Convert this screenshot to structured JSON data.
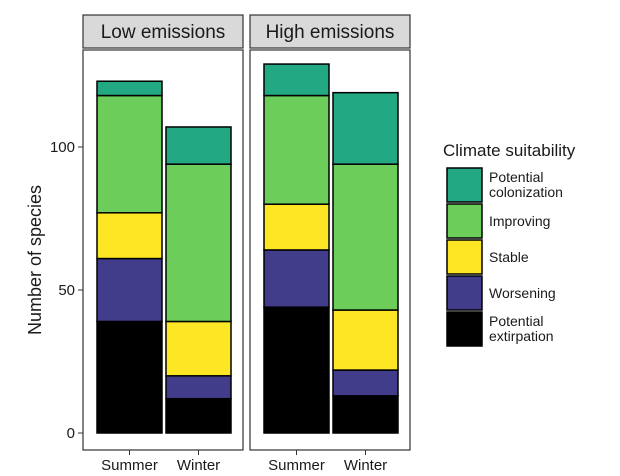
{
  "chart_data": {
    "type": "bar",
    "stacked": true,
    "facets": [
      "Low emissions",
      "High emissions"
    ],
    "categories": [
      "Summer",
      "Winter"
    ],
    "ylabel": "Number of species",
    "xlabel": "",
    "ylim": [
      0,
      130
    ],
    "yticks": [
      0,
      50,
      100
    ],
    "grid": false,
    "legend": {
      "title": "Climate suitability",
      "position": "right",
      "entries": [
        "Potential colonization",
        "Improving",
        "Stable",
        "Worsening",
        "Potential extirpation"
      ]
    },
    "series": [
      {
        "name": "Potential extirpation",
        "color": "#000000",
        "values": {
          "Low emissions": [
            39,
            12
          ],
          "High emissions": [
            44,
            13
          ]
        }
      },
      {
        "name": "Worsening",
        "color": "#413d8b",
        "values": {
          "Low emissions": [
            22,
            8
          ],
          "High emissions": [
            20,
            9
          ]
        }
      },
      {
        "name": "Stable",
        "color": "#fde725",
        "values": {
          "Low emissions": [
            16,
            19
          ],
          "High emissions": [
            16,
            21
          ]
        }
      },
      {
        "name": "Improving",
        "color": "#6ccd5a",
        "values": {
          "Low emissions": [
            41,
            55
          ],
          "High emissions": [
            38,
            51
          ]
        }
      },
      {
        "name": "Potential colonization",
        "color": "#23a884",
        "values": {
          "Low emissions": [
            5,
            13
          ],
          "High emissions": [
            11,
            25
          ]
        }
      }
    ],
    "totals": {
      "Low emissions": [
        123,
        107
      ],
      "High emissions": [
        129,
        119
      ]
    }
  }
}
